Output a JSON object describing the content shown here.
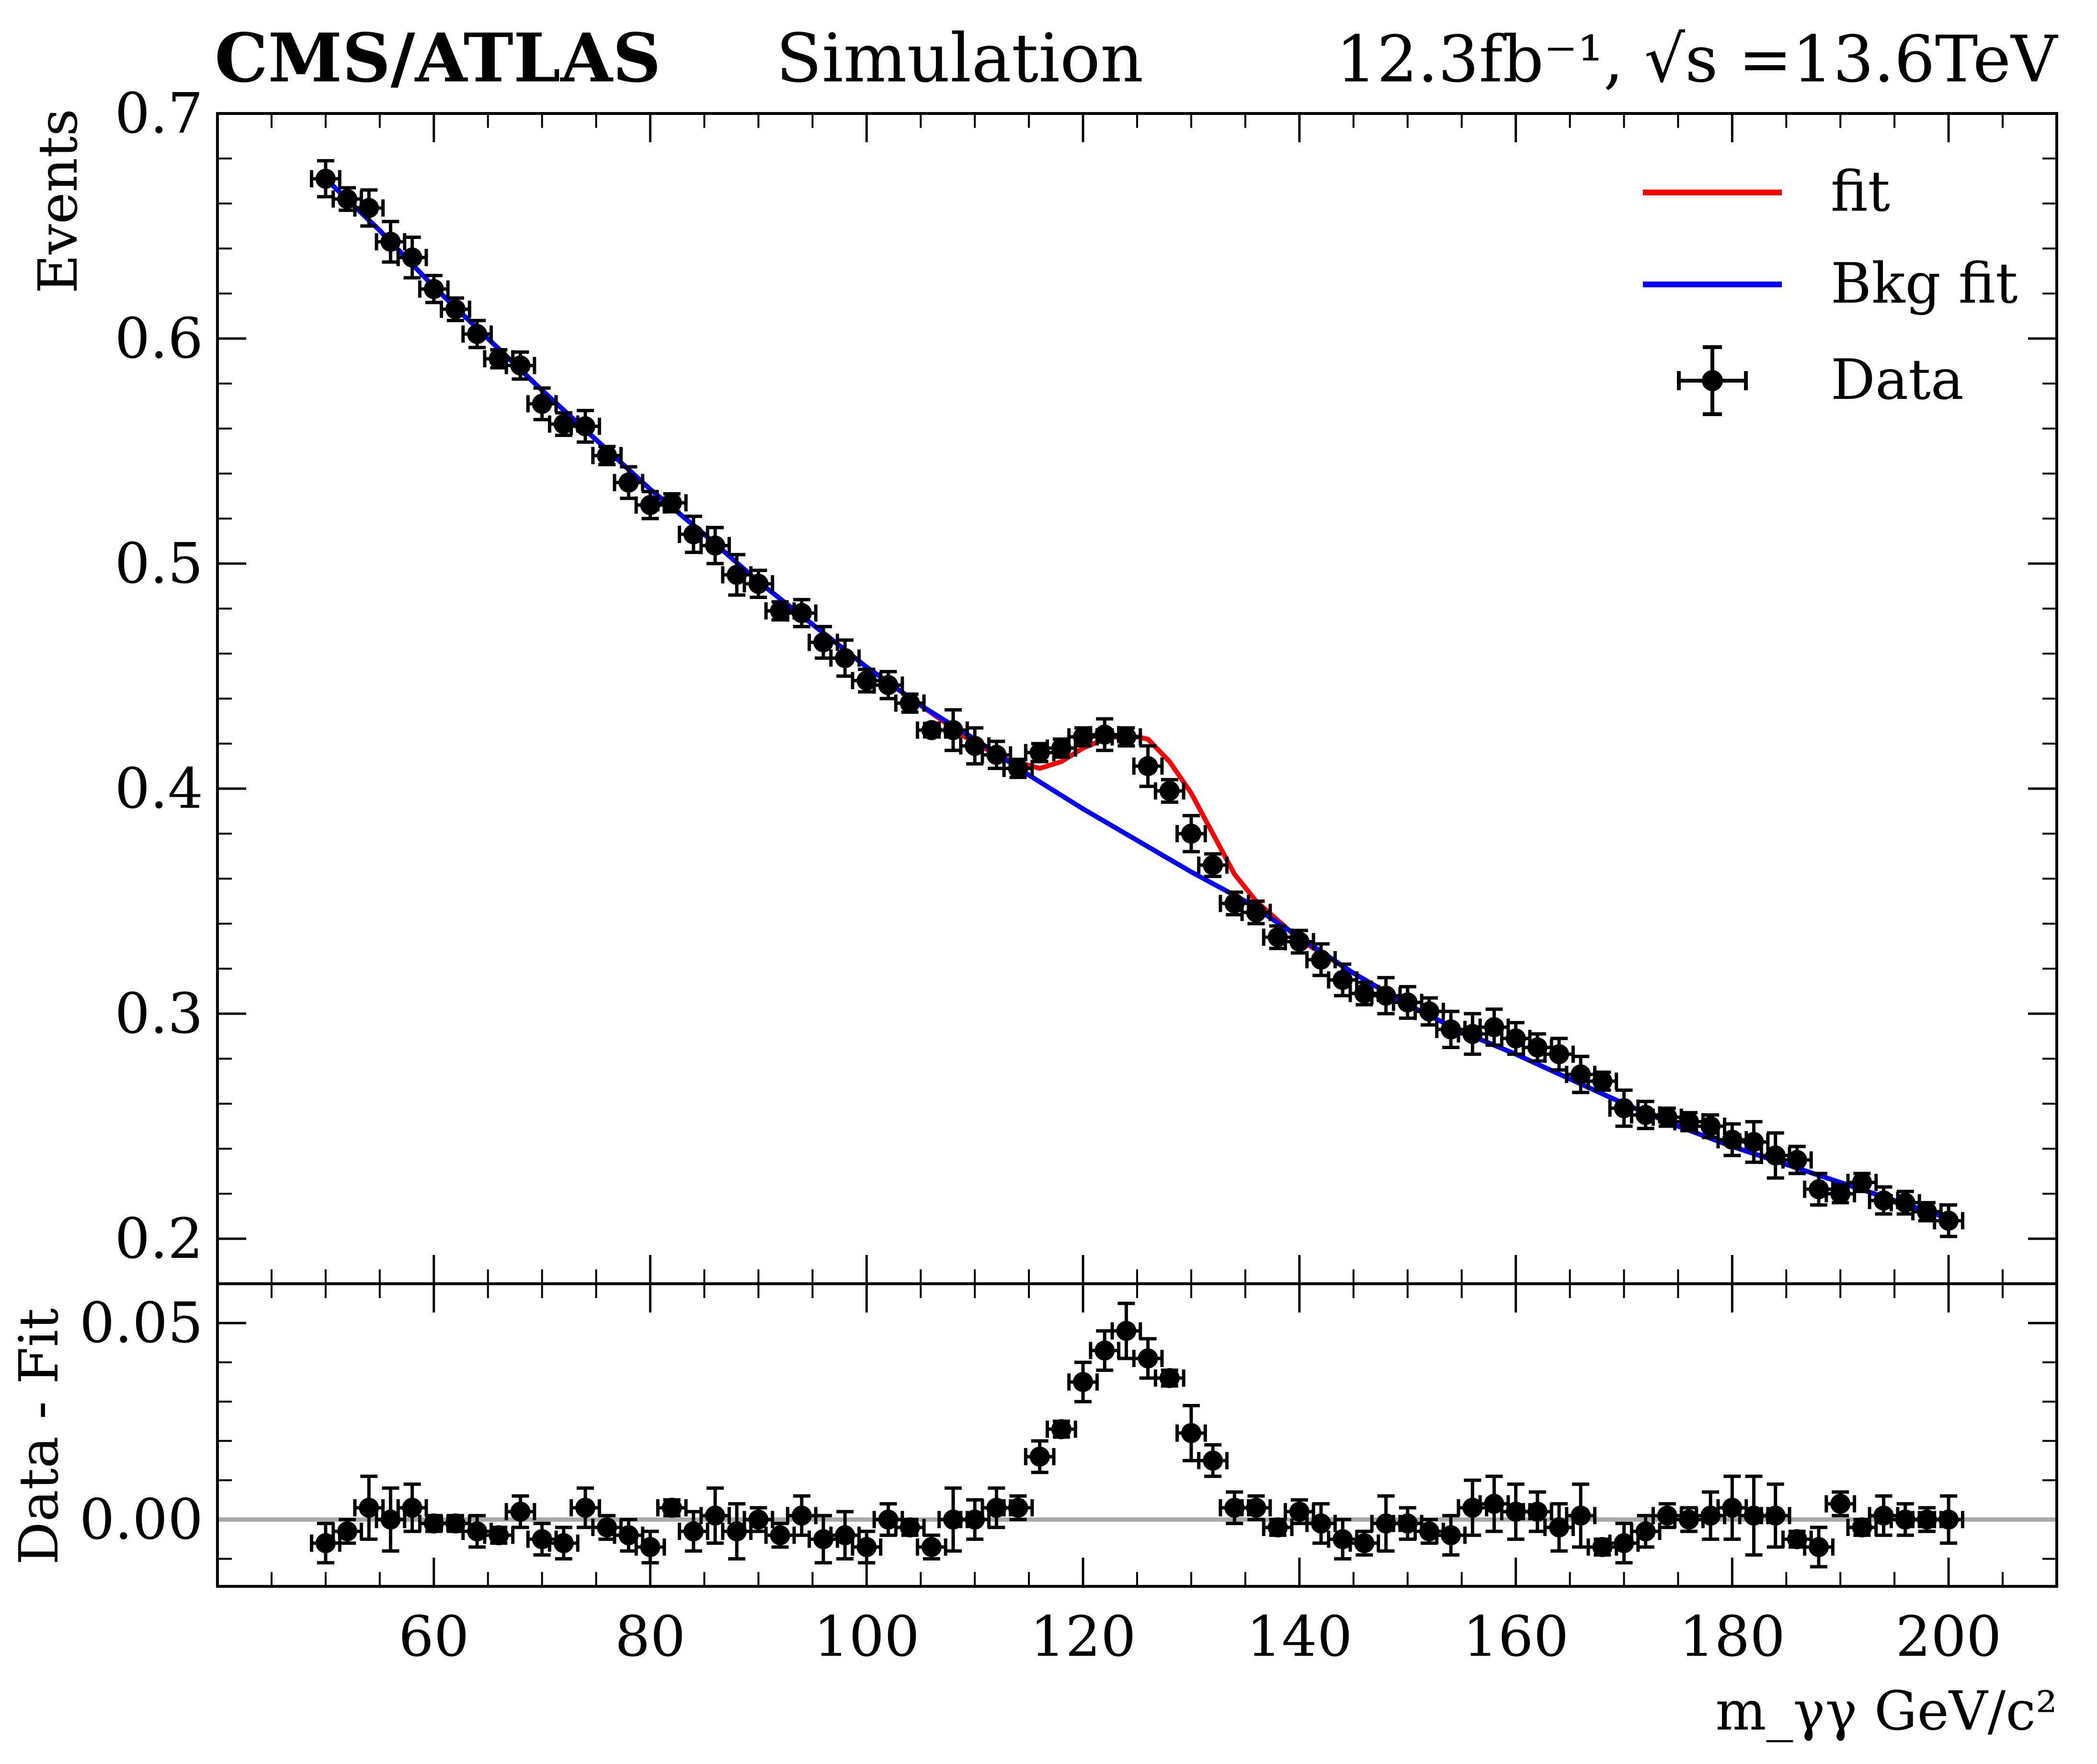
{
  "header": {
    "experiment": "CMS/ATLAS",
    "simulation": "Simulation",
    "lumi_energy": "12.3fb⁻¹, √s =13.6TeV"
  },
  "colors": {
    "fit": "#ff0000",
    "bkg_fit": "#0000ff",
    "data": "#000000",
    "zero_line": "#aaaaaa"
  },
  "chart_data": [
    {
      "type": "line",
      "panel": "main",
      "xlabel": "",
      "ylabel": "Events",
      "xlim": [
        40,
        210
      ],
      "ylim": [
        0.18,
        0.7
      ],
      "yticks": [
        0.2,
        0.3,
        0.4,
        0.5,
        0.6,
        0.7
      ],
      "ytick_labels": [
        "0.2",
        "0.3",
        "0.4",
        "0.5",
        "0.6",
        "0.7"
      ],
      "legend": {
        "position": "top-right",
        "entries": [
          "fit",
          "Bkg fit",
          "Data"
        ]
      },
      "x_error": 1.3,
      "x": [
        50,
        52,
        54,
        56,
        58,
        60,
        62,
        64,
        66,
        68,
        70,
        72,
        74,
        76,
        78,
        80,
        82,
        84,
        86,
        88,
        90,
        92,
        94,
        96,
        98,
        100,
        102,
        104,
        106,
        108,
        110,
        112,
        114,
        116,
        118,
        120,
        122,
        124,
        126,
        128,
        130,
        132,
        134,
        136,
        138,
        140,
        142,
        144,
        146,
        148,
        150,
        152,
        154,
        156,
        158,
        160,
        162,
        164,
        166,
        168,
        170,
        172,
        174,
        176,
        178,
        180,
        182,
        184,
        186,
        188,
        190,
        192,
        194,
        196,
        198,
        200
      ],
      "series": [
        {
          "name": "Data",
          "style": "errorbar",
          "values": [
            0.671,
            0.662,
            0.658,
            0.643,
            0.636,
            0.622,
            0.613,
            0.602,
            0.591,
            0.588,
            0.571,
            0.562,
            0.561,
            0.548,
            0.536,
            0.526,
            0.527,
            0.513,
            0.508,
            0.495,
            0.491,
            0.479,
            0.478,
            0.465,
            0.458,
            0.448,
            0.446,
            0.438,
            0.426,
            0.426,
            0.419,
            0.415,
            0.409,
            0.416,
            0.418,
            0.423,
            0.424,
            0.423,
            0.41,
            0.399,
            0.38,
            0.366,
            0.349,
            0.345,
            0.334,
            0.332,
            0.324,
            0.315,
            0.309,
            0.308,
            0.305,
            0.301,
            0.293,
            0.291,
            0.294,
            0.289,
            0.285,
            0.282,
            0.273,
            0.27,
            0.258,
            0.255,
            0.254,
            0.252,
            0.25,
            0.244,
            0.243,
            0.237,
            0.235,
            0.222,
            0.22,
            0.225,
            0.217,
            0.216,
            0.212,
            0.208
          ],
          "errors": [
            0.008,
            0.005,
            0.008,
            0.009,
            0.009,
            0.006,
            0.005,
            0.006,
            0.004,
            0.006,
            0.007,
            0.005,
            0.007,
            0.004,
            0.007,
            0.006,
            0.004,
            0.008,
            0.008,
            0.009,
            0.006,
            0.004,
            0.006,
            0.007,
            0.008,
            0.005,
            0.006,
            0.004,
            0.003,
            0.009,
            0.008,
            0.006,
            0.004,
            0.004,
            0.004,
            0.004,
            0.007,
            0.004,
            0.009,
            0.005,
            0.008,
            0.005,
            0.005,
            0.005,
            0.005,
            0.005,
            0.007,
            0.007,
            0.005,
            0.008,
            0.007,
            0.006,
            0.008,
            0.009,
            0.008,
            0.007,
            0.006,
            0.007,
            0.008,
            0.004,
            0.008,
            0.006,
            0.004,
            0.004,
            0.005,
            0.007,
            0.009,
            0.01,
            0.006,
            0.007,
            0.004,
            0.004,
            0.006,
            0.005,
            0.004,
            0.007
          ]
        },
        {
          "name": "Bkg fit",
          "style": "line",
          "x": [
            50,
            55,
            60,
            65,
            70,
            75,
            80,
            85,
            90,
            95,
            100,
            105,
            110,
            115,
            120,
            125,
            130,
            135,
            140,
            145,
            150,
            155,
            160,
            165,
            170,
            175,
            180,
            185,
            190,
            195,
            200
          ],
          "values": [
            0.671,
            0.648,
            0.623,
            0.6,
            0.577,
            0.555,
            0.533,
            0.513,
            0.492,
            0.473,
            0.454,
            0.437,
            0.422,
            0.406,
            0.391,
            0.377,
            0.363,
            0.35,
            0.334,
            0.318,
            0.304,
            0.292,
            0.282,
            0.271,
            0.26,
            0.25,
            0.241,
            0.233,
            0.225,
            0.217,
            0.209
          ]
        },
        {
          "name": "fit",
          "style": "line",
          "x": [
            50,
            55,
            60,
            65,
            70,
            75,
            80,
            85,
            90,
            95,
            100,
            105,
            110,
            113,
            116,
            118,
            120,
            122,
            124,
            126,
            128,
            130,
            132,
            134,
            136,
            140,
            145,
            150,
            155,
            160,
            165,
            170,
            175,
            180,
            185,
            190,
            195,
            200
          ],
          "values": [
            0.671,
            0.648,
            0.623,
            0.6,
            0.577,
            0.555,
            0.533,
            0.513,
            0.492,
            0.473,
            0.454,
            0.437,
            0.42,
            0.413,
            0.409,
            0.412,
            0.418,
            0.422,
            0.424,
            0.422,
            0.412,
            0.398,
            0.38,
            0.362,
            0.35,
            0.333,
            0.318,
            0.304,
            0.292,
            0.282,
            0.271,
            0.26,
            0.25,
            0.241,
            0.233,
            0.225,
            0.217,
            0.209
          ]
        }
      ]
    },
    {
      "type": "scatter",
      "panel": "ratio",
      "xlabel": "m_γγ GeV/c²",
      "ylabel": "Data - Fit",
      "xlim": [
        40,
        210
      ],
      "ylim": [
        -0.017,
        0.06
      ],
      "xticks": [
        60,
        80,
        100,
        120,
        140,
        160,
        180,
        200
      ],
      "xtick_labels": [
        "60",
        "80",
        "100",
        "120",
        "140",
        "160",
        "180",
        "200"
      ],
      "yticks": [
        0.0,
        0.05
      ],
      "ytick_labels": [
        "0.00",
        "0.05"
      ],
      "reference_line": 0.0,
      "x_error": 1.3,
      "x": [
        50,
        52,
        54,
        56,
        58,
        60,
        62,
        64,
        66,
        68,
        70,
        72,
        74,
        76,
        78,
        80,
        82,
        84,
        86,
        88,
        90,
        92,
        94,
        96,
        98,
        100,
        102,
        104,
        106,
        108,
        110,
        112,
        114,
        116,
        118,
        120,
        122,
        124,
        126,
        128,
        130,
        132,
        134,
        136,
        138,
        140,
        142,
        144,
        146,
        148,
        150,
        152,
        154,
        156,
        158,
        160,
        162,
        164,
        166,
        168,
        170,
        172,
        174,
        176,
        178,
        180,
        182,
        184,
        186,
        188,
        190,
        192,
        194,
        196,
        198,
        200
      ],
      "series": [
        {
          "name": "Data - Fit",
          "values": [
            -0.006,
            -0.003,
            0.003,
            0.0,
            0.003,
            -0.001,
            -0.001,
            -0.003,
            -0.004,
            0.002,
            -0.005,
            -0.006,
            0.003,
            -0.002,
            -0.004,
            -0.007,
            0.003,
            -0.003,
            0.001,
            -0.003,
            -0.0,
            -0.004,
            0.001,
            -0.005,
            -0.004,
            -0.007,
            -0.0,
            -0.002,
            -0.007,
            -0.0,
            -0.0,
            0.003,
            0.003,
            0.016,
            0.023,
            0.035,
            0.043,
            0.048,
            0.041,
            0.036,
            0.022,
            0.015,
            0.003,
            0.003,
            -0.002,
            0.002,
            -0.001,
            -0.005,
            -0.006,
            -0.001,
            -0.001,
            -0.003,
            -0.004,
            0.003,
            0.004,
            0.002,
            0.002,
            -0.002,
            0.001,
            -0.007,
            -0.006,
            -0.003,
            0.001,
            0.0,
            0.001,
            0.003,
            0.001,
            0.001,
            -0.005,
            -0.007,
            0.004,
            -0.002,
            0.001,
            0.0,
            0.0,
            0.0
          ],
          "errors": [
            0.005,
            0.003,
            0.008,
            0.008,
            0.006,
            0.002,
            0.002,
            0.004,
            0.002,
            0.004,
            0.004,
            0.004,
            0.005,
            0.003,
            0.004,
            0.004,
            0.002,
            0.005,
            0.007,
            0.007,
            0.003,
            0.003,
            0.005,
            0.006,
            0.006,
            0.004,
            0.004,
            0.002,
            0.003,
            0.008,
            0.005,
            0.005,
            0.003,
            0.004,
            0.002,
            0.005,
            0.005,
            0.007,
            0.005,
            0.002,
            0.007,
            0.004,
            0.004,
            0.003,
            0.002,
            0.003,
            0.005,
            0.005,
            0.003,
            0.007,
            0.004,
            0.003,
            0.005,
            0.007,
            0.007,
            0.007,
            0.005,
            0.006,
            0.008,
            0.002,
            0.005,
            0.004,
            0.003,
            0.003,
            0.006,
            0.008,
            0.01,
            0.008,
            0.002,
            0.005,
            0.003,
            0.002,
            0.005,
            0.004,
            0.003,
            0.006
          ]
        }
      ]
    }
  ]
}
